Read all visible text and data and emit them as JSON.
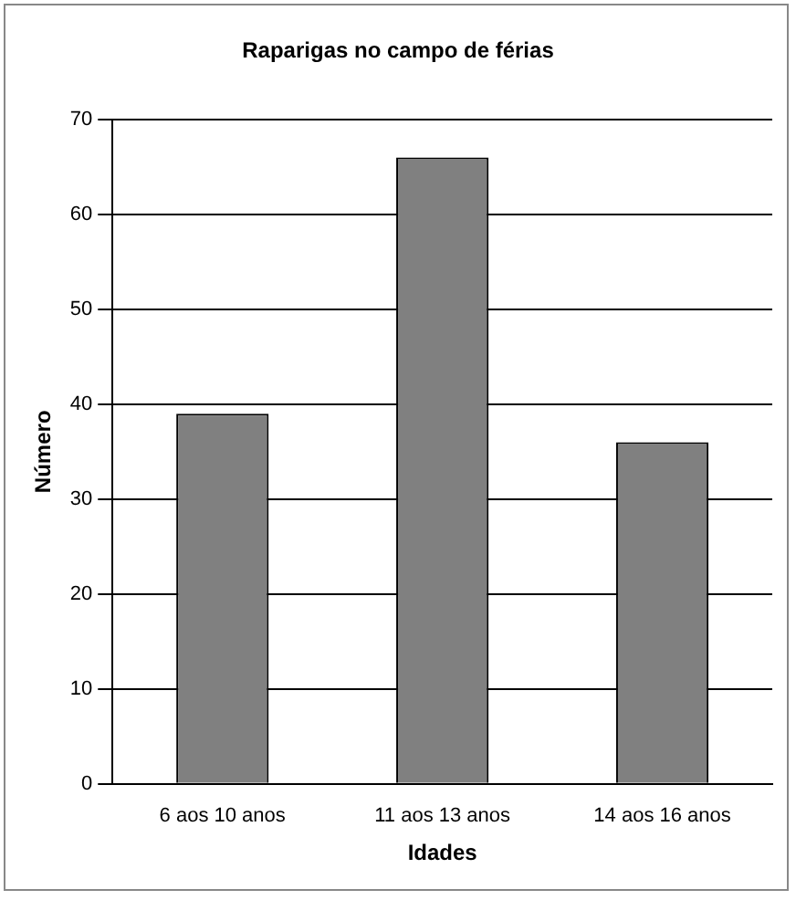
{
  "chart_data": {
    "type": "bar",
    "title": "Raparigas no campo de férias",
    "xlabel": "Idades",
    "ylabel": "Número",
    "categories": [
      "6 aos 10 anos",
      "11 aos 13 anos",
      "14 aos 16 anos"
    ],
    "values": [
      39,
      66,
      36
    ],
    "color": "#808080",
    "ylim": [
      0,
      70
    ],
    "yticks": [
      0,
      10,
      20,
      30,
      40,
      50,
      60,
      70
    ],
    "grid": "y",
    "legend": false
  }
}
